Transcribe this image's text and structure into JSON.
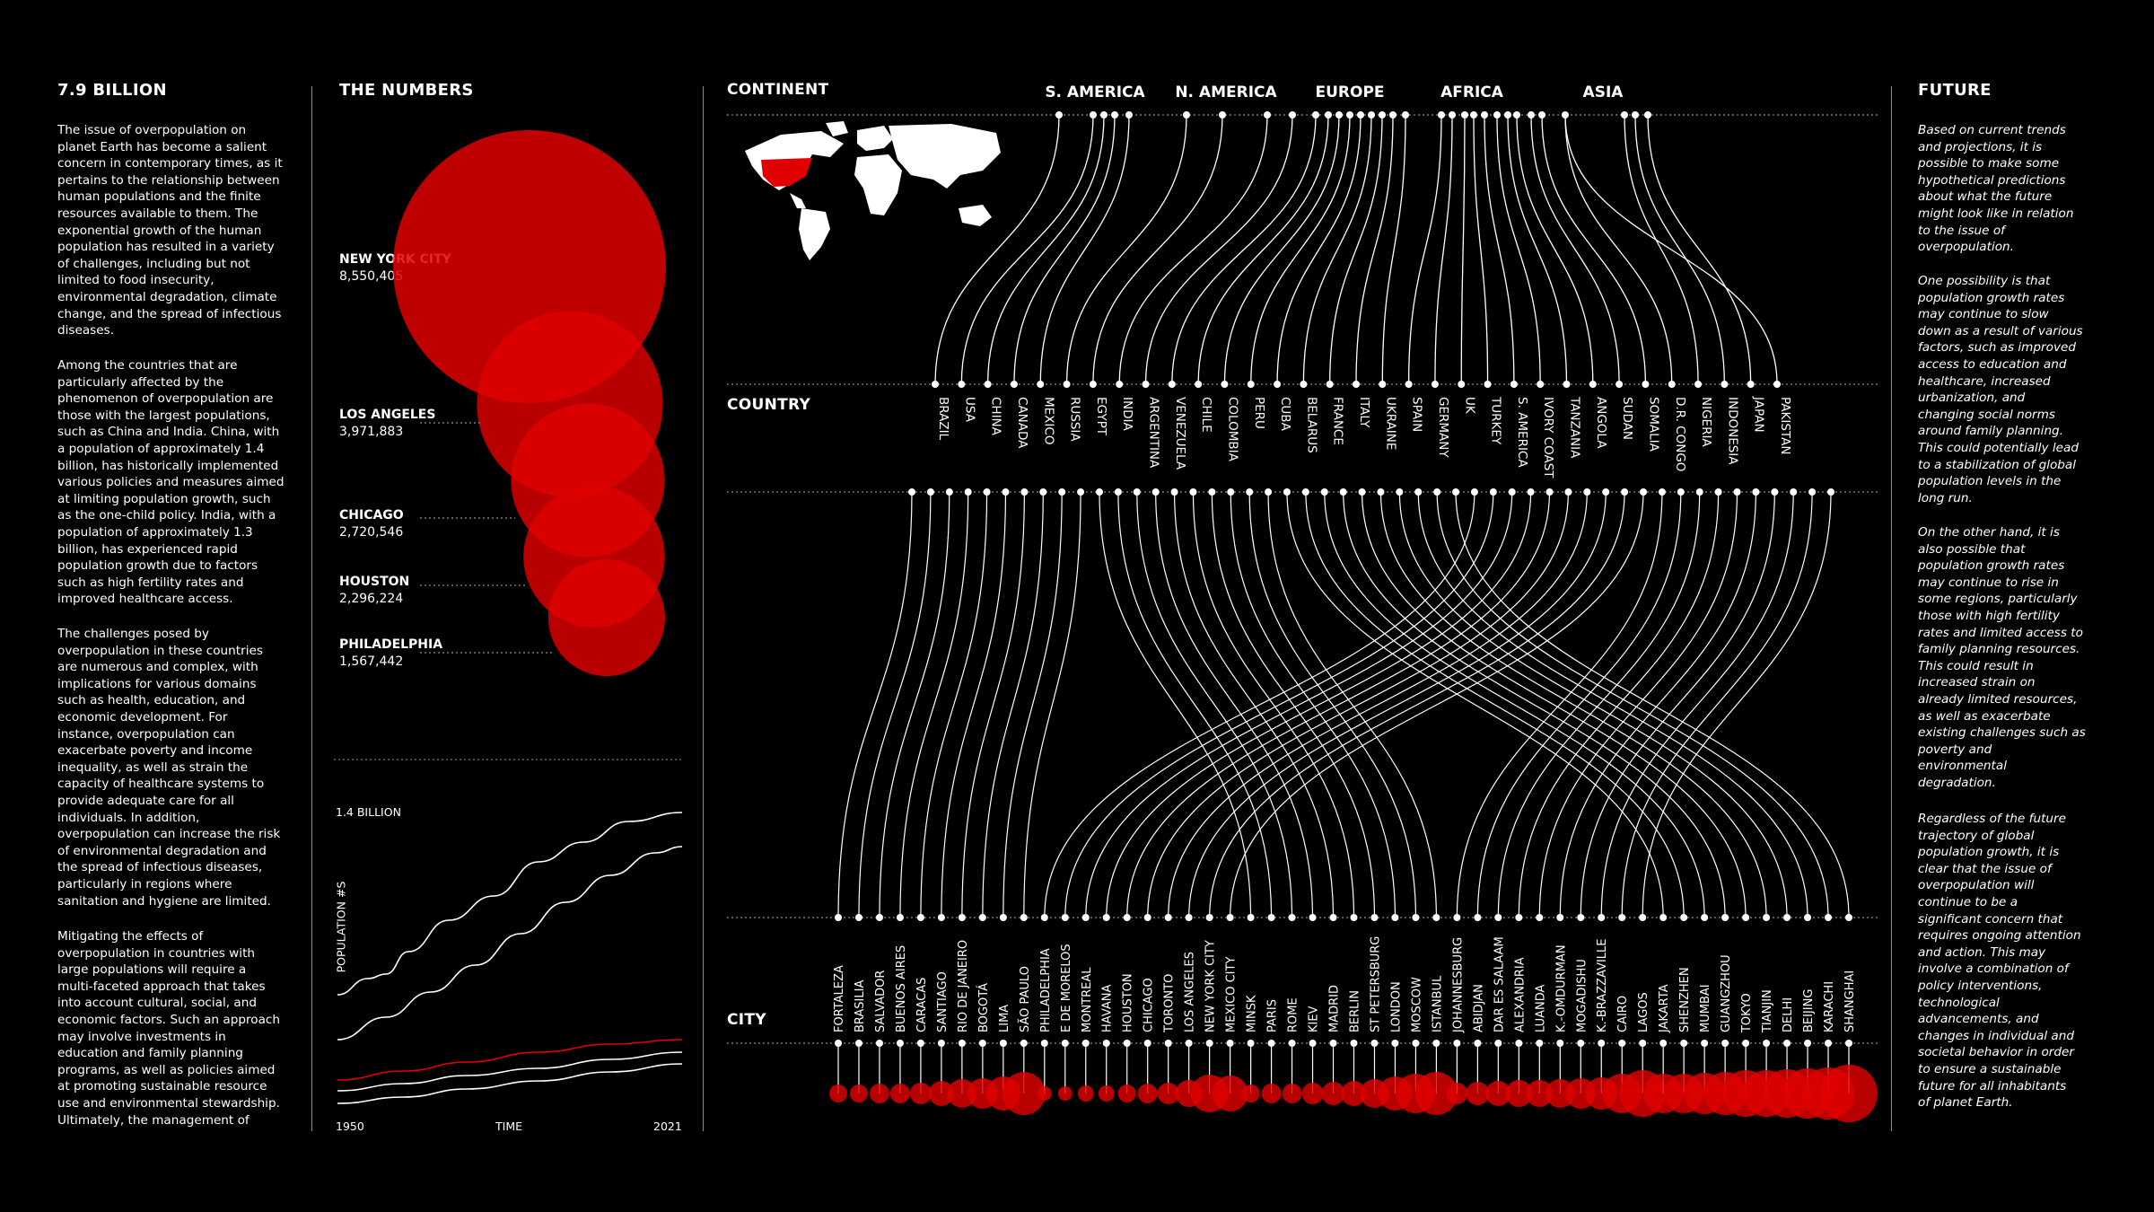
{
  "col1": {
    "title": "7.9 BILLION",
    "paragraphs": [
      "The issue of overpopulation on\nplanet Earth has become a salient\nconcern in contemporary times, as it\npertains to the relationship between\nhuman populations and the finite\nresources available to them. The\nexponential growth of the human\npopulation has resulted in a variety\nof challenges, including but not\nlimited to food insecurity,\nenvironmental degradation, climate\nchange, and the spread of infectious\ndiseases.",
      "Among the countries that are\nparticularly affected by the\nphenomenon of overpopulation are\nthose with the largest populations,\nsuch as China and India. China, with\na population of approximately 1.4\nbillion, has historically implemented\nvarious policies and measures aimed\nat limiting population growth, such\nas the one-child policy. India, with a\npopulation of approximately 1.3\nbillion, has experienced rapid\npopulation growth due to factors\nsuch as high fertility rates and\nimproved healthcare access.",
      "The challenges posed by\noverpopulation in these countries\nare numerous and complex, with\nimplications for various domains\nsuch as health, education, and\neconomic development. For\ninstance, overpopulation can\nexacerbate poverty and income\ninequality, as well as strain the\ncapacity of healthcare systems to\nprovide adequate care for all\nindividuals. In addition,\noverpopulation can increase the risk\nof environmental degradation and\nthe spread of infectious diseases,\nparticularly in regions where\nsanitation and hygiene are limited.",
      "Mitigating the effects of\noverpopulation in countries with\nlarge populations will require a\nmulti-faceted approach that takes\ninto account cultural, social, and\neconomic factors. Such an approach\nmay involve investments in\neducation and family planning\nprograms, as well as policies aimed\nat promoting sustainable resource\nuse and environmental stewardship.\nUltimately, the management of"
    ]
  },
  "col2": {
    "title": "THE NUMBERS",
    "bubbles": [
      {
        "name": "NEW YORK CITY",
        "value": "8,550,405",
        "population": 8550405
      },
      {
        "name": "LOS ANGELES",
        "value": "3,971,883",
        "population": 3971883
      },
      {
        "name": "CHICAGO",
        "value": "2,720,546",
        "population": 2720546
      },
      {
        "name": "HOUSTON",
        "value": "2,296,224",
        "population": 2296224
      },
      {
        "name": "PHILADELPHIA",
        "value": "1,567,442",
        "population": 1567442
      }
    ],
    "line_chart": {
      "top_label": "1.4 BILLION",
      "ylabel": "POPULATION #S",
      "xlabel": "TIME",
      "x_start": "1950",
      "x_end": "2021"
    }
  },
  "col3": {
    "continent_label": "CONTINENT",
    "country_label": "COUNTRY",
    "city_label": "CITY",
    "continents": [
      "S. AMERICA",
      "N. AMERICA",
      "EUROPE",
      "AFRICA",
      "ASIA"
    ],
    "countries": [
      "BRAZIL",
      "USA",
      "CHINA",
      "CANADA",
      "MEXICO",
      "RUSSIA",
      "EGYPT",
      "INDIA",
      "ARGENTINA",
      "VENEZUELA",
      "CHILE",
      "COLOMBIA",
      "PERU",
      "CUBA",
      "BELARUS",
      "FRANCE",
      "ITALY",
      "UKRAINE",
      "SPAIN",
      "GERMANY",
      "UK",
      "TURKEY",
      "S. AMERICA",
      "IVORY COAST",
      "TANZANIA",
      "ANGOLA",
      "SUDAN",
      "SOMALIA",
      "D.R. CONGO",
      "NIGERIA",
      "INDONESIA",
      "JAPAN",
      "PAKISTAN"
    ],
    "cities": [
      "FORTALEZA",
      "BRASILIA",
      "SALVADOR",
      "BUENOS AIRES",
      "CARACAS",
      "SANTIAGO",
      "RIO DE JANEIRO",
      "BOGOTÁ",
      "LIMA",
      "SÃO PAULO",
      "PHILADELPHIA",
      "E DE MORELOS",
      "MONTREAL",
      "HAVANA",
      "HOUSTON",
      "CHICAGO",
      "TORONTO",
      "LOS ANGELES",
      "NEW YORK CITY",
      "MEXICO CITY",
      "MINSK",
      "PARIS",
      "ROME",
      "KIEV",
      "MADRID",
      "BERLIN",
      "ST PETERSBURG",
      "LONDON",
      "MOSCOW",
      "ISTANBUL",
      "JOHANNESBURG",
      "ABIDJAN",
      "DAR ES SALAAM",
      "ALEXANDRIA",
      "LUANDA",
      "K.-OMDURMAN",
      "MOGADISHU",
      "K.-BRAZZAVILLE",
      "CAIRO",
      "LAGOS",
      "JAKARTA",
      "SHENZHEN",
      "MUMBAI",
      "GUANGZHOU",
      "TOKYO",
      "TIANJIN",
      "DELHI",
      "BEIJING",
      "KARACHI",
      "SHANGHAI"
    ]
  },
  "col4": {
    "title": "FUTURE",
    "paragraphs": [
      "Based on current trends\nand projections, it is\npossible to make some\nhypothetical predictions\nabout what the future\nmight look like in relation\nto the issue of\noverpopulation.",
      "One possibility is that\npopulation growth rates\nmay continue to slow\ndown as a result of various\nfactors, such as improved\naccess to education and\nhealthcare, increased\nurbanization, and\nchanging social norms\naround family planning.\nThis could potentially lead\nto a stabilization of global\npopulation levels in the\nlong run.",
      "On the other hand, it is\nalso possible that\npopulation growth rates\nmay continue to rise in\nsome regions, particularly\nthose with high fertility\nrates and limited access to\nfamily planning resources.\nThis could result in\nincreased strain on\nalready limited resources,\nas well as exacerbate\nexisting challenges such as\npoverty and\nenvironmental\ndegradation.",
      "Regardless of the future\ntrajectory of global\npopulation growth, it is\nclear that the issue of\noverpopulation will\ncontinue to be a\nsignificant concern that\nrequires ongoing attention\nand action. This may\ninvolve a combination of\npolicy interventions,\ntechnological\nadvancements, and\nchanges in individual and\nsocietal behavior in order\nto ensure a sustainable\nfuture for all inhabitants\nof planet Earth."
    ]
  },
  "colors": {
    "background": "#000000",
    "accent": "#e00000",
    "line": "#ffffff"
  }
}
